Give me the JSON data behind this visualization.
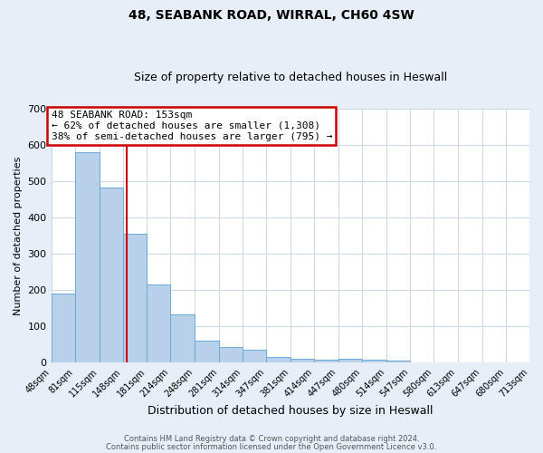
{
  "title": "48, SEABANK ROAD, WIRRAL, CH60 4SW",
  "subtitle": "Size of property relative to detached houses in Heswall",
  "xlabel": "Distribution of detached houses by size in Heswall",
  "ylabel": "Number of detached properties",
  "bar_values": [
    190,
    578,
    483,
    355,
    215,
    133,
    60,
    42,
    35,
    15,
    10,
    8,
    10,
    8,
    5
  ],
  "bin_labels": [
    "48sqm",
    "81sqm",
    "115sqm",
    "148sqm",
    "181sqm",
    "214sqm",
    "248sqm",
    "281sqm",
    "314sqm",
    "347sqm",
    "381sqm",
    "414sqm",
    "447sqm",
    "480sqm",
    "514sqm",
    "547sqm",
    "580sqm",
    "613sqm",
    "647sqm",
    "680sqm",
    "713sqm"
  ],
  "bar_color": "#b8d0ea",
  "bar_edge_color": "#6aaad4",
  "red_line_x": 153,
  "annotation_title": "48 SEABANK ROAD: 153sqm",
  "annotation_line1": "← 62% of detached houses are smaller (1,308)",
  "annotation_line2": "38% of semi-detached houses are larger (795) →",
  "annotation_box_color": "white",
  "annotation_box_edge_color": "#cc0000",
  "ylim": [
    0,
    700
  ],
  "yticks": [
    0,
    100,
    200,
    300,
    400,
    500,
    600,
    700
  ],
  "plot_bg_color": "#ffffff",
  "fig_bg_color": "#e8eef8",
  "grid_color": "#d0d8e8",
  "footer_line1": "Contains HM Land Registry data © Crown copyright and database right 2024.",
  "footer_line2": "Contains public sector information licensed under the Open Government Licence v3.0.",
  "figsize": [
    6.0,
    5.0
  ],
  "dpi": 100
}
